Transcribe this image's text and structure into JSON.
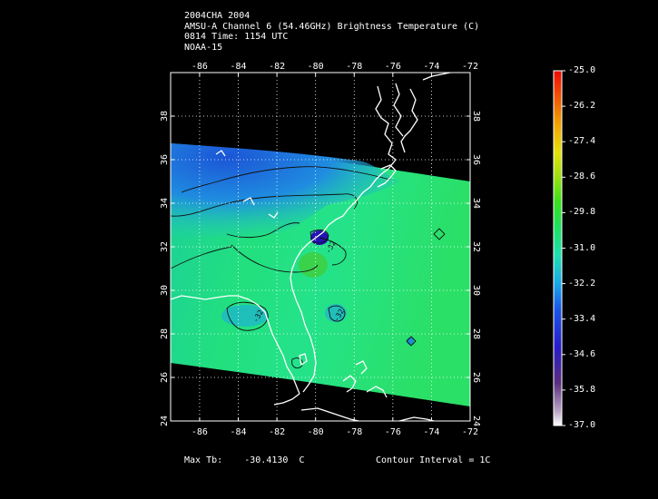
{
  "header": {
    "line1": "2004CHA 2004",
    "line2": "AMSU-A Channel 6 (54.46GHz) Brightness Temperature (C)",
    "line3": "0814 Time: 1154 UTC",
    "line4": "NOAA-15"
  },
  "map": {
    "lon_labels": [
      "-86",
      "-84",
      "-82",
      "-80",
      "-78",
      "-76",
      "-74",
      "-72"
    ],
    "lat_labels": [
      "24",
      "26",
      "28",
      "30",
      "32",
      "34",
      "36",
      "38"
    ],
    "lon_range": [
      -87.5,
      -72
    ],
    "lat_range": [
      24,
      40
    ],
    "swath_color_mid": "#22e388",
    "swath_color_north": "#1f6fd8",
    "coastline_color": "#ffffff",
    "grid_style": "dotted white"
  },
  "colorbar": {
    "labels": [
      "-25.0",
      "-26.2",
      "-27.4",
      "-28.6",
      "-29.8",
      "-31.0",
      "-32.2",
      "-33.4",
      "-34.6",
      "-35.8",
      "-37.0"
    ],
    "range": [
      -37.0,
      -25.0
    ]
  },
  "footer": {
    "max_tb_label": "Max Tb:",
    "max_tb_value": "-30.4130",
    "max_tb_unit": "C",
    "contour_interval": "Contour Interval = 1C"
  }
}
